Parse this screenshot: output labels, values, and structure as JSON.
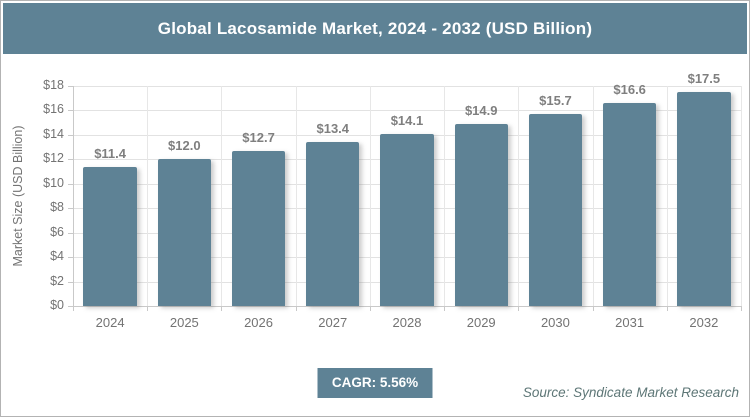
{
  "header": {
    "title": "Global Lacosamide Market, 2024 - 2032 (USD Billion)"
  },
  "chart_data": {
    "type": "bar",
    "title": "Global Lacosamide Market, 2024 - 2032 (USD Billion)",
    "categories": [
      "2024",
      "2025",
      "2026",
      "2027",
      "2028",
      "2029",
      "2030",
      "2031",
      "2032"
    ],
    "values": [
      11.4,
      12.0,
      12.7,
      13.4,
      14.1,
      14.9,
      15.7,
      16.6,
      17.5
    ],
    "value_labels": [
      "$11.4",
      "$12.0",
      "$12.7",
      "$13.4",
      "$14.1",
      "$14.9",
      "$15.7",
      "$16.6",
      "$17.5"
    ],
    "xlabel": "",
    "ylabel": "Market Size (USD Billion)",
    "ylim": [
      0,
      18
    ],
    "ytick_step": 2,
    "ytick_labels": [
      "$0",
      "$2",
      "$4",
      "$6",
      "$8",
      "$10",
      "$12",
      "$14",
      "$16",
      "$18"
    ],
    "grid": true,
    "legend": false
  },
  "footer": {
    "cagr_label": "CAGR: 5.56%",
    "source": "Source: Syndicate Market Research"
  },
  "colors": {
    "accent": "#5e8295",
    "grid": "#e2e2e2",
    "axis_line": "#c9c9c9",
    "axis_text": "#737373",
    "data_label": "#7f7f7f",
    "source_text": "#5d7676",
    "title_text": "#ffffff"
  }
}
